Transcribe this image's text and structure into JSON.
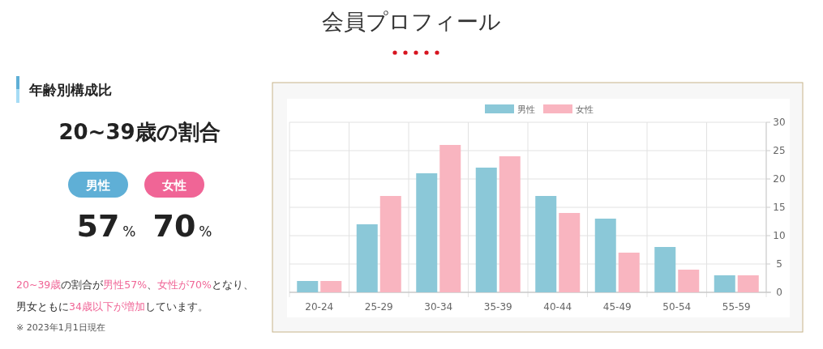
{
  "chart_data": [
    {
      "type": "other",
      "title": "会員プロフィール"
    },
    {
      "type": "other",
      "title": "年齢別構成比",
      "subtitle": "20~39歳の割合",
      "categories": [
        "男性",
        "女性"
      ],
      "values": [
        57,
        70
      ],
      "value_labels": [
        "57%",
        "70%"
      ],
      "colors": [
        "#5fafd6",
        "#f06596"
      ],
      "annotations": [
        "20~39歳",
        "の割合が",
        "男性57%",
        "、",
        "女性が70%",
        "となり、男女ともに",
        "34歳以下が増加",
        "しています。",
        "※  2023年1月1日現在"
      ]
    },
    {
      "type": "bar",
      "categories": [
        "20-24",
        "25-29",
        "30-34",
        "35-39",
        "40-44",
        "45-49",
        "50-54",
        "55-59"
      ],
      "series": [
        {
          "name": "男性",
          "color": "#8bc8d8",
          "values": [
            2,
            12,
            21,
            22,
            17,
            13,
            8,
            3
          ]
        },
        {
          "name": "女性",
          "color": "#f9b5c0",
          "values": [
            2,
            17,
            26,
            24,
            14,
            7,
            4,
            3
          ]
        }
      ],
      "ylim": [
        0,
        30
      ],
      "yticks": [
        0,
        5,
        10,
        15,
        20,
        25,
        30
      ],
      "grid": true,
      "legend": "top"
    }
  ]
}
